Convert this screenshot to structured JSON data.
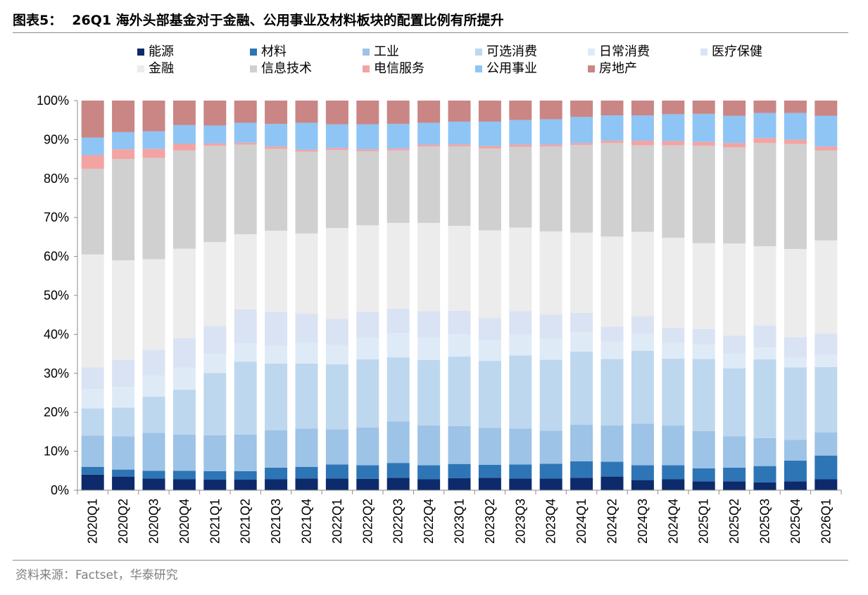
{
  "header": {
    "figure_label": "图表5：",
    "title": "26Q1 海外头部基金对于金融、公用事业及材料板块的配置比例有所提升"
  },
  "footer": {
    "source": "资料来源：Factset，华泰研究"
  },
  "chart_data": {
    "type": "bar",
    "stacked": true,
    "ylim": [
      0,
      100
    ],
    "y_ticks": [
      "0%",
      "10%",
      "20%",
      "30%",
      "40%",
      "50%",
      "60%",
      "70%",
      "80%",
      "90%",
      "100%"
    ],
    "legend_position": "top",
    "grid": false,
    "categories": [
      "2020Q1",
      "2020Q2",
      "2020Q3",
      "2020Q4",
      "2021Q1",
      "2021Q2",
      "2021Q3",
      "2021Q4",
      "2022Q1",
      "2022Q2",
      "2022Q3",
      "2022Q4",
      "2023Q1",
      "2023Q2",
      "2023Q3",
      "2023Q4",
      "2024Q1",
      "2024Q2",
      "2024Q3",
      "2024Q4",
      "2025Q1",
      "2025Q2",
      "2025Q3",
      "2025Q4",
      "2026Q1"
    ],
    "series": [
      {
        "name": "能源",
        "color": "#0d2a6b",
        "values": [
          4,
          3.5,
          3,
          2.8,
          2.7,
          2.7,
          2.8,
          3,
          3,
          2.9,
          3.2,
          2.8,
          3,
          3.2,
          3,
          3,
          3.2,
          3.5,
          2.6,
          2.8,
          2.3,
          2.3,
          2,
          2.3,
          2.8
        ]
      },
      {
        "name": "材料",
        "color": "#2e75b6",
        "values": [
          2,
          1.8,
          2,
          2.2,
          2.2,
          2.2,
          3,
          3,
          3.6,
          3.5,
          3.8,
          3.6,
          3.6,
          3.3,
          3.6,
          3.8,
          4.2,
          3.8,
          3.8,
          3.6,
          3.3,
          3.5,
          4.2,
          5.3,
          6.1
        ]
      },
      {
        "name": "工业",
        "color": "#9dc3e6",
        "values": [
          8,
          8.5,
          9.7,
          9.3,
          9.2,
          9.4,
          9.6,
          9.8,
          9,
          9.7,
          10.6,
          10.2,
          9.5,
          9.5,
          9.2,
          8.5,
          9.4,
          9.3,
          10.7,
          10.2,
          9.6,
          8,
          7.2,
          5.3,
          5.9
        ]
      },
      {
        "name": "可选消费",
        "color": "#bdd7ee",
        "values": [
          7,
          7.4,
          9.3,
          11.5,
          16,
          18.7,
          17.1,
          16.7,
          16.7,
          17.5,
          16.5,
          16.8,
          17.5,
          17.2,
          18.8,
          18.2,
          18.8,
          17.1,
          18.7,
          17.2,
          18.5,
          17.5,
          20.2,
          18.6,
          16.8
        ]
      },
      {
        "name": "日常消费",
        "color": "#deebf7",
        "values": [
          5,
          5.3,
          5.4,
          5.7,
          4.9,
          4.7,
          4.6,
          5.3,
          4.9,
          5.5,
          6.2,
          5.7,
          5.6,
          5.2,
          5.3,
          5.4,
          5,
          4.4,
          4.3,
          4,
          3.6,
          3.8,
          3,
          2.5,
          3.1
        ]
      },
      {
        "name": "医疗保健",
        "color": "#dae3f3",
        "values": [
          5.5,
          7,
          6.6,
          7.5,
          7.2,
          8.7,
          8.7,
          7.5,
          6.8,
          6.7,
          6.3,
          6.9,
          5.9,
          5.8,
          6.1,
          6.2,
          4.9,
          3.9,
          4.6,
          3.9,
          4.1,
          4.6,
          5.7,
          5.3,
          5.5
        ]
      },
      {
        "name": "金融",
        "color": "#ececec",
        "values": [
          29,
          25.5,
          23.3,
          23,
          21.5,
          19.3,
          20.8,
          20.6,
          23.3,
          22.2,
          22,
          22.6,
          21.4,
          22.5,
          21.4,
          21.3,
          20.6,
          23.1,
          21.6,
          23.1,
          22,
          23.6,
          20.3,
          22.6,
          23.9
        ]
      },
      {
        "name": "信息技术",
        "color": "#d0d0d0",
        "values": [
          22,
          26,
          26,
          25.2,
          24.7,
          23,
          21,
          21,
          20,
          19,
          18.6,
          19.6,
          20,
          21,
          20.7,
          21.8,
          22.5,
          24,
          22.2,
          23.7,
          25,
          24.7,
          26.5,
          27,
          23.1
        ]
      },
      {
        "name": "电信服务",
        "color": "#f4a3a3",
        "values": [
          3.5,
          2.5,
          2.3,
          1.7,
          0.6,
          0.5,
          0.6,
          0.5,
          0.5,
          0.5,
          0.5,
          0.5,
          0.5,
          0.6,
          0.6,
          0.5,
          0.5,
          0.6,
          1.2,
          1.1,
          1,
          1.1,
          1.3,
          1.1,
          1
        ]
      },
      {
        "name": "公用事业",
        "color": "#8ec5f5",
        "values": [
          4.5,
          4.4,
          4.5,
          4.8,
          4.6,
          5.1,
          5.8,
          6.9,
          6.1,
          6.4,
          6.3,
          5.6,
          5.7,
          6.3,
          6.3,
          6.5,
          6.7,
          6.5,
          6.5,
          6.9,
          7.2,
          7,
          6.4,
          6.8,
          7.9
        ]
      },
      {
        "name": "房地产",
        "color": "#c98685",
        "values": [
          9.5,
          8.1,
          7.9,
          6.3,
          6.4,
          5.7,
          6,
          5.7,
          6.1,
          6.1,
          6,
          5.7,
          5.3,
          5.4,
          5,
          4.8,
          4.2,
          3.8,
          3.8,
          3.5,
          3.4,
          3.9,
          3.2,
          3.2,
          3.9
        ]
      }
    ]
  }
}
